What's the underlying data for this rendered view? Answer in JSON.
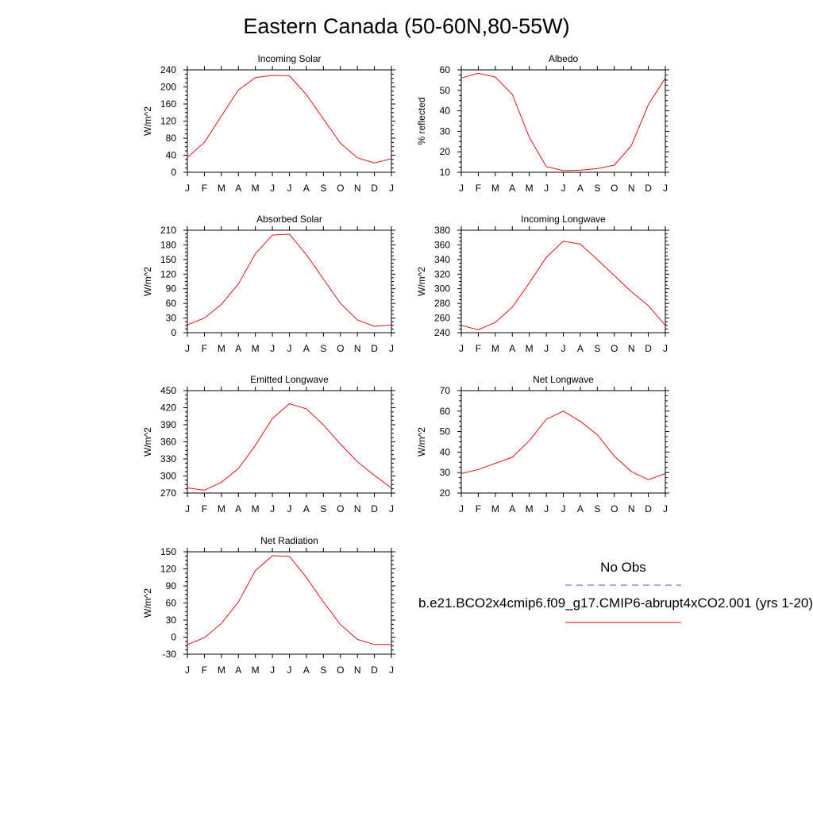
{
  "title": "Eastern Canada (50-60N,80-55W)",
  "legend": {
    "obs_label": "No Obs",
    "obs_color": "#4f4fe0",
    "model_label": "b.e21.BCO2x4cmip6.f09_g17.CMIP6-abrupt4xCO2.001 (yrs 1-20)",
    "model_color": "#e81010"
  },
  "chart_data": [
    {
      "type": "line",
      "title": "Incoming Solar",
      "ylabel": "W/m^2",
      "categories": [
        "J",
        "F",
        "M",
        "A",
        "M",
        "J",
        "J",
        "A",
        "S",
        "O",
        "N",
        "D",
        "J"
      ],
      "ylim": [
        0,
        240
      ],
      "yticks": [
        0,
        40,
        80,
        120,
        160,
        200,
        240
      ],
      "series": [
        {
          "values": [
            35,
            70,
            132,
            193,
            222,
            227,
            226,
            182,
            125,
            68,
            34,
            22,
            32
          ]
        }
      ]
    },
    {
      "type": "line",
      "title": "Albedo",
      "ylabel": "% reflected",
      "categories": [
        "J",
        "F",
        "M",
        "A",
        "M",
        "J",
        "J",
        "A",
        "S",
        "O",
        "N",
        "D",
        "J"
      ],
      "ylim": [
        10,
        60
      ],
      "yticks": [
        10,
        20,
        30,
        40,
        50,
        60
      ],
      "series": [
        {
          "values": [
            56,
            58.3,
            56.5,
            48,
            27,
            12.8,
            10.8,
            11,
            11.8,
            13.5,
            23,
            43,
            56
          ]
        }
      ]
    },
    {
      "type": "line",
      "title": "Absorbed Solar",
      "ylabel": "W/m^2",
      "categories": [
        "J",
        "F",
        "M",
        "A",
        "M",
        "J",
        "J",
        "A",
        "S",
        "O",
        "N",
        "D",
        "J"
      ],
      "ylim": [
        0,
        210
      ],
      "yticks": [
        0,
        30,
        60,
        90,
        120,
        150,
        180,
        210
      ],
      "series": [
        {
          "values": [
            16,
            30,
            58,
            100,
            162,
            200,
            202,
            160,
            110,
            60,
            26,
            13,
            16
          ]
        }
      ]
    },
    {
      "type": "line",
      "title": "Incoming Longwave",
      "ylabel": "W/m^2",
      "categories": [
        "J",
        "F",
        "M",
        "A",
        "M",
        "J",
        "J",
        "A",
        "S",
        "O",
        "N",
        "D",
        "J"
      ],
      "ylim": [
        240,
        380
      ],
      "yticks": [
        240,
        260,
        280,
        300,
        320,
        340,
        360,
        380
      ],
      "series": [
        {
          "values": [
            250,
            244,
            254,
            275,
            308,
            343,
            365,
            361,
            340,
            318,
            296,
            277,
            250
          ]
        }
      ]
    },
    {
      "type": "line",
      "title": "Emitted Longwave",
      "ylabel": "W/m^2",
      "categories": [
        "J",
        "F",
        "M",
        "A",
        "M",
        "J",
        "J",
        "A",
        "S",
        "O",
        "N",
        "D",
        "J"
      ],
      "ylim": [
        270,
        450
      ],
      "yticks": [
        270,
        300,
        330,
        360,
        390,
        420,
        450
      ],
      "series": [
        {
          "values": [
            279,
            275,
            289,
            313,
            354,
            401,
            427,
            418,
            390,
            356,
            325,
            301,
            279
          ]
        }
      ]
    },
    {
      "type": "line",
      "title": "Net Longwave",
      "ylabel": "W/m^2",
      "categories": [
        "J",
        "F",
        "M",
        "A",
        "M",
        "J",
        "J",
        "A",
        "S",
        "O",
        "N",
        "D",
        "J"
      ],
      "ylim": [
        20,
        70
      ],
      "yticks": [
        20,
        30,
        40,
        50,
        60,
        70
      ],
      "series": [
        {
          "values": [
            29.5,
            31.5,
            34.5,
            37.5,
            45.5,
            56,
            60,
            55,
            48.5,
            38,
            30.5,
            26.5,
            29.5
          ]
        }
      ]
    },
    {
      "type": "line",
      "title": "Net Radiation",
      "ylabel": "W/m^2",
      "categories": [
        "J",
        "F",
        "M",
        "A",
        "M",
        "J",
        "J",
        "A",
        "S",
        "O",
        "N",
        "D",
        "J"
      ],
      "ylim": [
        -30,
        150
      ],
      "yticks": [
        -30,
        0,
        30,
        60,
        90,
        120,
        150
      ],
      "series": [
        {
          "values": [
            -13,
            -1,
            24,
            62,
            117,
            143,
            142,
            105,
            62,
            22,
            -4,
            -13,
            -13
          ]
        }
      ]
    }
  ]
}
